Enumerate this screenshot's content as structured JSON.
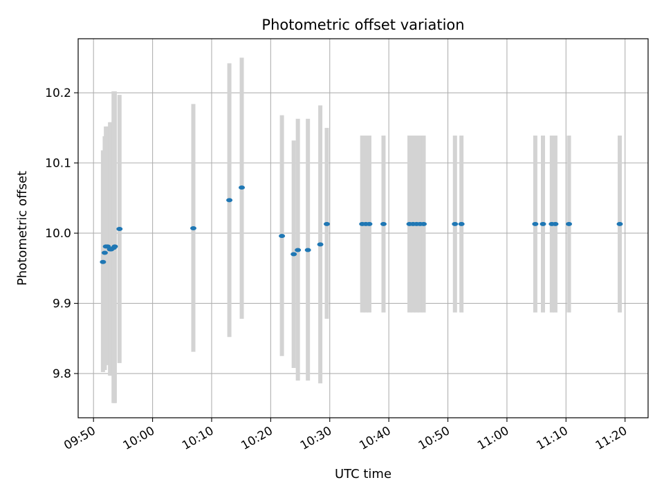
{
  "chart_data": {
    "type": "scatter",
    "title": "Photometric offset variation",
    "xlabel": "UTC time",
    "ylabel": "Photometric offset",
    "x_ticks": [
      "09:50",
      "10:00",
      "10:10",
      "10:20",
      "10:30",
      "10:40",
      "10:50",
      "11:00",
      "11:10",
      "11:20"
    ],
    "y_ticks": [
      "9.8",
      "9.9",
      "10.0",
      "10.1",
      "10.2"
    ],
    "xlim": [
      "09:47:24",
      "11:23:54"
    ],
    "ylim": [
      9.737,
      10.277
    ],
    "grid": true,
    "colors": {
      "points": "#1f77b4",
      "errorbars": "#d3d3d3",
      "grid": "#b0b0b0"
    },
    "series": [
      {
        "points": [
          {
            "x": "09:51:36",
            "y": 9.959,
            "ylo": 9.802,
            "yhi": 10.118
          },
          {
            "x": "09:51:54",
            "y": 9.972,
            "ylo": 9.805,
            "yhi": 10.138
          },
          {
            "x": "09:52:06",
            "y": 9.981,
            "ylo": 9.818,
            "yhi": 10.152
          },
          {
            "x": "09:52:24",
            "y": 9.981,
            "ylo": 9.812,
            "yhi": 10.152
          },
          {
            "x": "09:52:48",
            "y": 9.977,
            "ylo": 9.797,
            "yhi": 10.158
          },
          {
            "x": "09:53:00",
            "y": 9.977,
            "ylo": 9.797,
            "yhi": 10.158
          },
          {
            "x": "09:53:24",
            "y": 9.979,
            "ylo": 9.758,
            "yhi": 10.202
          },
          {
            "x": "09:53:36",
            "y": 9.981,
            "ylo": 9.758,
            "yhi": 10.202
          },
          {
            "x": "09:54:24",
            "y": 10.006,
            "ylo": 9.815,
            "yhi": 10.197
          },
          {
            "x": "10:06:54",
            "y": 10.007,
            "ylo": 9.831,
            "yhi": 10.184
          },
          {
            "x": "10:13:00",
            "y": 10.047,
            "ylo": 9.852,
            "yhi": 10.242
          },
          {
            "x": "10:15:06",
            "y": 10.065,
            "ylo": 9.878,
            "yhi": 10.25
          },
          {
            "x": "10:21:54",
            "y": 9.996,
            "ylo": 9.825,
            "yhi": 10.168
          },
          {
            "x": "10:23:54",
            "y": 9.97,
            "ylo": 9.808,
            "yhi": 10.132
          },
          {
            "x": "10:24:36",
            "y": 9.976,
            "ylo": 9.79,
            "yhi": 10.163
          },
          {
            "x": "10:26:18",
            "y": 9.976,
            "ylo": 9.79,
            "yhi": 10.163
          },
          {
            "x": "10:28:24",
            "y": 9.984,
            "ylo": 9.786,
            "yhi": 10.182
          },
          {
            "x": "10:29:30",
            "y": 10.013,
            "ylo": 9.878,
            "yhi": 10.15
          },
          {
            "x": "10:35:30",
            "y": 10.013,
            "ylo": 9.887,
            "yhi": 10.139
          },
          {
            "x": "10:36:06",
            "y": 10.013,
            "ylo": 9.887,
            "yhi": 10.139
          },
          {
            "x": "10:36:42",
            "y": 10.013,
            "ylo": 9.887,
            "yhi": 10.139
          },
          {
            "x": "10:39:06",
            "y": 10.013,
            "ylo": 9.887,
            "yhi": 10.139
          },
          {
            "x": "10:43:30",
            "y": 10.013,
            "ylo": 9.887,
            "yhi": 10.139
          },
          {
            "x": "10:44:06",
            "y": 10.013,
            "ylo": 9.887,
            "yhi": 10.139
          },
          {
            "x": "10:44:42",
            "y": 10.013,
            "ylo": 9.887,
            "yhi": 10.139
          },
          {
            "x": "10:45:18",
            "y": 10.013,
            "ylo": 9.887,
            "yhi": 10.139
          },
          {
            "x": "10:45:54",
            "y": 10.013,
            "ylo": 9.887,
            "yhi": 10.139
          },
          {
            "x": "10:51:12",
            "y": 10.013,
            "ylo": 9.887,
            "yhi": 10.139
          },
          {
            "x": "10:52:18",
            "y": 10.013,
            "ylo": 9.887,
            "yhi": 10.139
          },
          {
            "x": "11:04:48",
            "y": 10.013,
            "ylo": 9.887,
            "yhi": 10.139
          },
          {
            "x": "11:06:06",
            "y": 10.013,
            "ylo": 9.887,
            "yhi": 10.139
          },
          {
            "x": "11:07:36",
            "y": 10.013,
            "ylo": 9.887,
            "yhi": 10.139
          },
          {
            "x": "11:08:12",
            "y": 10.013,
            "ylo": 9.887,
            "yhi": 10.139
          },
          {
            "x": "11:10:30",
            "y": 10.013,
            "ylo": 9.887,
            "yhi": 10.139
          },
          {
            "x": "11:19:06",
            "y": 10.013,
            "ylo": 9.887,
            "yhi": 10.139
          }
        ]
      }
    ]
  }
}
